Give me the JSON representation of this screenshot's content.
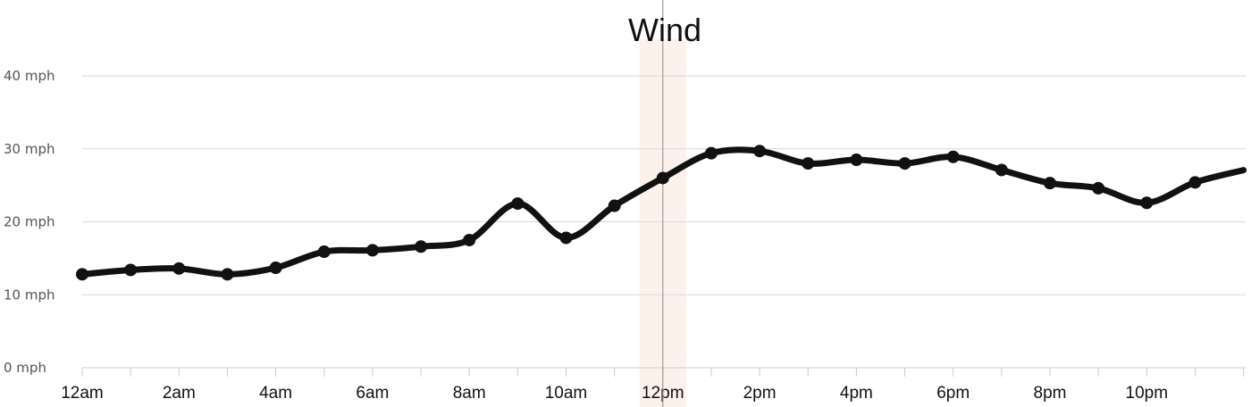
{
  "chart_data": {
    "type": "line",
    "title": "Wind",
    "xlabel": "",
    "ylabel": "",
    "ylim": [
      0,
      40
    ],
    "yticks": [
      {
        "value": 0,
        "label": "0 mph"
      },
      {
        "value": 10,
        "label": "10 mph"
      },
      {
        "value": 20,
        "label": "20 mph"
      },
      {
        "value": 30,
        "label": "30 mph"
      },
      {
        "value": 40,
        "label": "40 mph"
      }
    ],
    "xticks": [
      {
        "hour": 0,
        "label": "12am"
      },
      {
        "hour": 2,
        "label": "2am"
      },
      {
        "hour": 4,
        "label": "4am"
      },
      {
        "hour": 6,
        "label": "6am"
      },
      {
        "hour": 8,
        "label": "8am"
      },
      {
        "hour": 10,
        "label": "10am"
      },
      {
        "hour": 12,
        "label": "12pm"
      },
      {
        "hour": 14,
        "label": "2pm"
      },
      {
        "hour": 16,
        "label": "4pm"
      },
      {
        "hour": 18,
        "label": "6pm"
      },
      {
        "hour": 20,
        "label": "8pm"
      },
      {
        "hour": 22,
        "label": "10pm"
      }
    ],
    "grid": true,
    "current_marker_hour": 12,
    "colors": {
      "line": "#111111",
      "grid": "#d9d9d9",
      "highlight": "#fdf1ec",
      "marker_line": "#8a8a8a"
    },
    "series": [
      {
        "x": [
          0,
          1,
          2,
          3,
          4,
          5,
          6,
          7,
          8,
          9,
          10,
          11,
          12,
          13,
          14,
          15,
          16,
          17,
          18,
          19,
          20,
          21,
          22,
          23
        ],
        "values": [
          12.8,
          13.4,
          13.6,
          12.8,
          13.7,
          15.9,
          16.1,
          16.6,
          17.5,
          22.5,
          17.8,
          22.2,
          26.0,
          29.4,
          29.7,
          28.0,
          28.5,
          28.0,
          28.9,
          27.1,
          25.3,
          24.6,
          22.6,
          25.4
        ]
      }
    ]
  }
}
